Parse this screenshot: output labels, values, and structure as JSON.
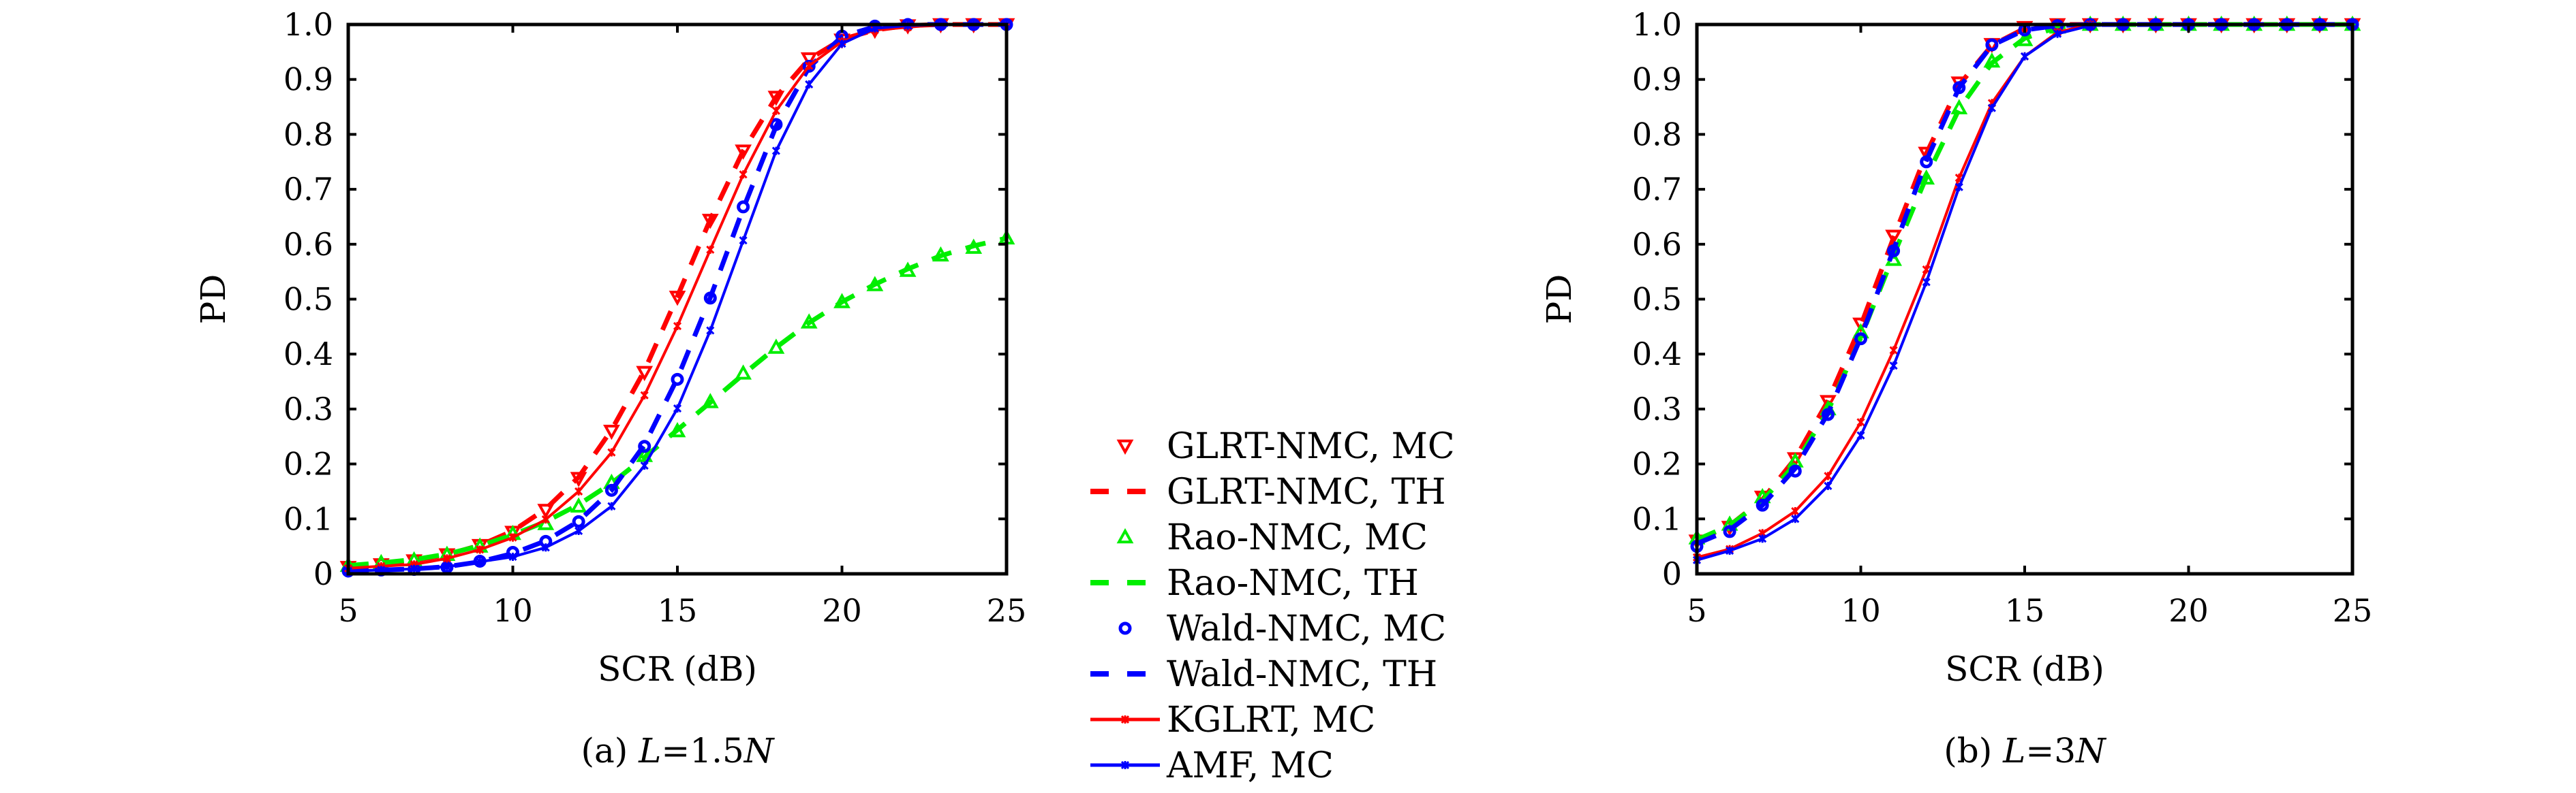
{
  "legend": [
    {
      "label": "GLRT-NMC, MC"
    },
    {
      "label": "GLRT-NMC, TH"
    },
    {
      "label": "Rao-NMC, MC"
    },
    {
      "label": "Rao-NMC, TH"
    },
    {
      "label": "Wald-NMC, MC"
    },
    {
      "label": "Wald-NMC, TH"
    },
    {
      "label": "KGLRT, MC"
    },
    {
      "label": "AMF, MC"
    }
  ],
  "chart_data": [
    {
      "type": "line",
      "title": "(a) L=1.5N",
      "caption_prefix": "(a) ",
      "caption_var": "L",
      "caption_rest": "=1.5",
      "caption_var2": "N",
      "xlabel": "SCR (dB)",
      "ylabel": "PD",
      "xlim": [
        5,
        25
      ],
      "ylim": [
        0,
        1
      ],
      "xticks": [
        5,
        10,
        15,
        20,
        25
      ],
      "yticks": [
        0,
        0.1,
        0.2,
        0.3,
        0.4,
        0.5,
        0.6,
        0.7,
        0.8,
        0.9,
        1.0
      ],
      "ytick_labels": [
        "0",
        "0.1",
        "0.2",
        "0.3",
        "0.4",
        "0.5",
        "0.6",
        "0.7",
        "0.8",
        "0.9",
        "1.0"
      ],
      "x": [
        5,
        6,
        7,
        8,
        9,
        10,
        11,
        12,
        13,
        14,
        15,
        16,
        17,
        18,
        19,
        20,
        21,
        22,
        23,
        24,
        25
      ],
      "series": [
        {
          "name": "GLRT-NMC, MC",
          "values": [
            0.012,
            0.017,
            0.024,
            0.035,
            0.052,
            0.076,
            0.116,
            0.174,
            0.26,
            0.367,
            0.504,
            0.644,
            0.77,
            0.868,
            0.938,
            0.972,
            0.99,
            0.998,
            1,
            1,
            1
          ]
        },
        {
          "name": "GLRT-NMC, TH",
          "values": [
            0.012,
            0.017,
            0.024,
            0.035,
            0.052,
            0.078,
            0.118,
            0.176,
            0.262,
            0.37,
            0.505,
            0.645,
            0.77,
            0.868,
            0.937,
            0.973,
            0.99,
            0.998,
            1,
            1,
            1
          ]
        },
        {
          "name": "Rao-NMC, MC",
          "values": [
            0.015,
            0.02,
            0.025,
            0.035,
            0.05,
            0.073,
            0.091,
            0.123,
            0.166,
            0.215,
            0.26,
            0.313,
            0.365,
            0.412,
            0.458,
            0.495,
            0.526,
            0.552,
            0.58,
            0.594,
            0.611
          ]
        },
        {
          "name": "Rao-NMC, TH",
          "values": [
            0.015,
            0.02,
            0.026,
            0.036,
            0.051,
            0.071,
            0.095,
            0.126,
            0.165,
            0.212,
            0.262,
            0.312,
            0.363,
            0.412,
            0.457,
            0.495,
            0.527,
            0.555,
            0.579,
            0.597,
            0.611
          ]
        },
        {
          "name": "Wald-NMC, MC",
          "values": [
            0.005,
            0.007,
            0.008,
            0.012,
            0.023,
            0.039,
            0.059,
            0.095,
            0.152,
            0.232,
            0.354,
            0.502,
            0.668,
            0.818,
            0.924,
            0.979,
            0.997,
            1,
            1,
            1,
            1
          ]
        },
        {
          "name": "Wald-NMC, TH",
          "values": [
            0.005,
            0.007,
            0.009,
            0.013,
            0.022,
            0.037,
            0.06,
            0.096,
            0.152,
            0.235,
            0.356,
            0.503,
            0.665,
            0.815,
            0.922,
            0.978,
            0.996,
            1,
            1,
            1,
            1
          ]
        },
        {
          "name": "KGLRT, MC",
          "values": [
            0.01,
            0.014,
            0.017,
            0.028,
            0.044,
            0.066,
            0.099,
            0.15,
            0.221,
            0.325,
            0.451,
            0.59,
            0.727,
            0.843,
            0.925,
            0.969,
            0.99,
            0.995,
            1,
            1,
            1
          ]
        },
        {
          "name": "AMF, MC",
          "values": [
            0.005,
            0.007,
            0.009,
            0.013,
            0.022,
            0.031,
            0.048,
            0.078,
            0.123,
            0.197,
            0.301,
            0.443,
            0.607,
            0.77,
            0.891,
            0.965,
            0.993,
            0.998,
            1,
            1,
            1
          ]
        }
      ]
    },
    {
      "type": "line",
      "title": "(b) L=3N",
      "caption_prefix": "(b) ",
      "caption_var": "L",
      "caption_rest": "=3",
      "caption_var2": "N",
      "xlabel": "SCR (dB)",
      "ylabel": "PD",
      "xlim": [
        5,
        25
      ],
      "ylim": [
        0,
        1
      ],
      "xticks": [
        5,
        10,
        15,
        20,
        25
      ],
      "yticks": [
        0,
        0.1,
        0.2,
        0.3,
        0.4,
        0.5,
        0.6,
        0.7,
        0.8,
        0.9,
        1.0
      ],
      "ytick_labels": [
        "0",
        "0.1",
        "0.2",
        "0.3",
        "0.4",
        "0.5",
        "0.6",
        "0.7",
        "0.8",
        "0.9",
        "1.0"
      ],
      "x": [
        5,
        6,
        7,
        8,
        9,
        10,
        11,
        12,
        13,
        14,
        15,
        16,
        17,
        18,
        19,
        20,
        21,
        22,
        23,
        24,
        25
      ],
      "series": [
        {
          "name": "GLRT-NMC, MC",
          "values": [
            0.06,
            0.085,
            0.14,
            0.21,
            0.314,
            0.455,
            0.615,
            0.766,
            0.894,
            0.964,
            0.995,
            1,
            1,
            1,
            1,
            1,
            1,
            1,
            1,
            1,
            1
          ]
        },
        {
          "name": "GLRT-NMC, TH",
          "values": [
            0.06,
            0.088,
            0.135,
            0.21,
            0.315,
            0.452,
            0.612,
            0.765,
            0.89,
            0.962,
            0.993,
            1,
            1,
            1,
            1,
            1,
            1,
            1,
            1,
            1,
            1
          ]
        },
        {
          "name": "Rao-NMC, MC",
          "values": [
            0.065,
            0.09,
            0.14,
            0.205,
            0.3,
            0.44,
            0.572,
            0.72,
            0.848,
            0.933,
            0.972,
            0.995,
            1,
            1,
            1,
            1,
            1,
            1,
            1,
            1,
            1
          ]
        },
        {
          "name": "Rao-NMC, TH",
          "values": [
            0.062,
            0.088,
            0.133,
            0.2,
            0.297,
            0.43,
            0.58,
            0.722,
            0.846,
            0.93,
            0.975,
            0.995,
            1,
            1,
            1,
            1,
            1,
            1,
            1,
            1,
            1
          ]
        },
        {
          "name": "Wald-NMC, MC",
          "values": [
            0.05,
            0.077,
            0.125,
            0.187,
            0.29,
            0.428,
            0.588,
            0.75,
            0.885,
            0.963,
            0.99,
            0.998,
            1,
            1,
            1,
            1,
            1,
            1,
            1,
            1,
            1
          ]
        },
        {
          "name": "Wald-NMC, TH",
          "values": [
            0.055,
            0.08,
            0.125,
            0.192,
            0.292,
            0.43,
            0.59,
            0.752,
            0.885,
            0.962,
            0.99,
            0.998,
            1,
            1,
            1,
            1,
            1,
            1,
            1,
            1,
            1
          ]
        },
        {
          "name": "KGLRT, MC",
          "values": [
            0.03,
            0.045,
            0.074,
            0.114,
            0.178,
            0.276,
            0.407,
            0.554,
            0.721,
            0.857,
            0.942,
            0.986,
            1,
            1,
            1,
            1,
            1,
            1,
            1,
            1,
            1
          ]
        },
        {
          "name": "AMF, MC",
          "values": [
            0.025,
            0.042,
            0.064,
            0.1,
            0.16,
            0.252,
            0.379,
            0.531,
            0.704,
            0.848,
            0.942,
            0.983,
            0.998,
            1,
            1,
            1,
            1,
            1,
            1,
            1,
            1
          ]
        }
      ]
    }
  ],
  "styles": [
    {
      "color": "#ff0000",
      "line": "none",
      "marker": "tri-down"
    },
    {
      "color": "#ff0000",
      "line": "dash",
      "marker": "none"
    },
    {
      "color": "#00ee00",
      "line": "none",
      "marker": "tri-up"
    },
    {
      "color": "#00ee00",
      "line": "dash",
      "marker": "none"
    },
    {
      "color": "#0000ff",
      "line": "none",
      "marker": "circle"
    },
    {
      "color": "#0000ff",
      "line": "dash",
      "marker": "none"
    },
    {
      "color": "#ff0000",
      "line": "solid",
      "marker": "star"
    },
    {
      "color": "#0000ff",
      "line": "solid",
      "marker": "star"
    }
  ]
}
